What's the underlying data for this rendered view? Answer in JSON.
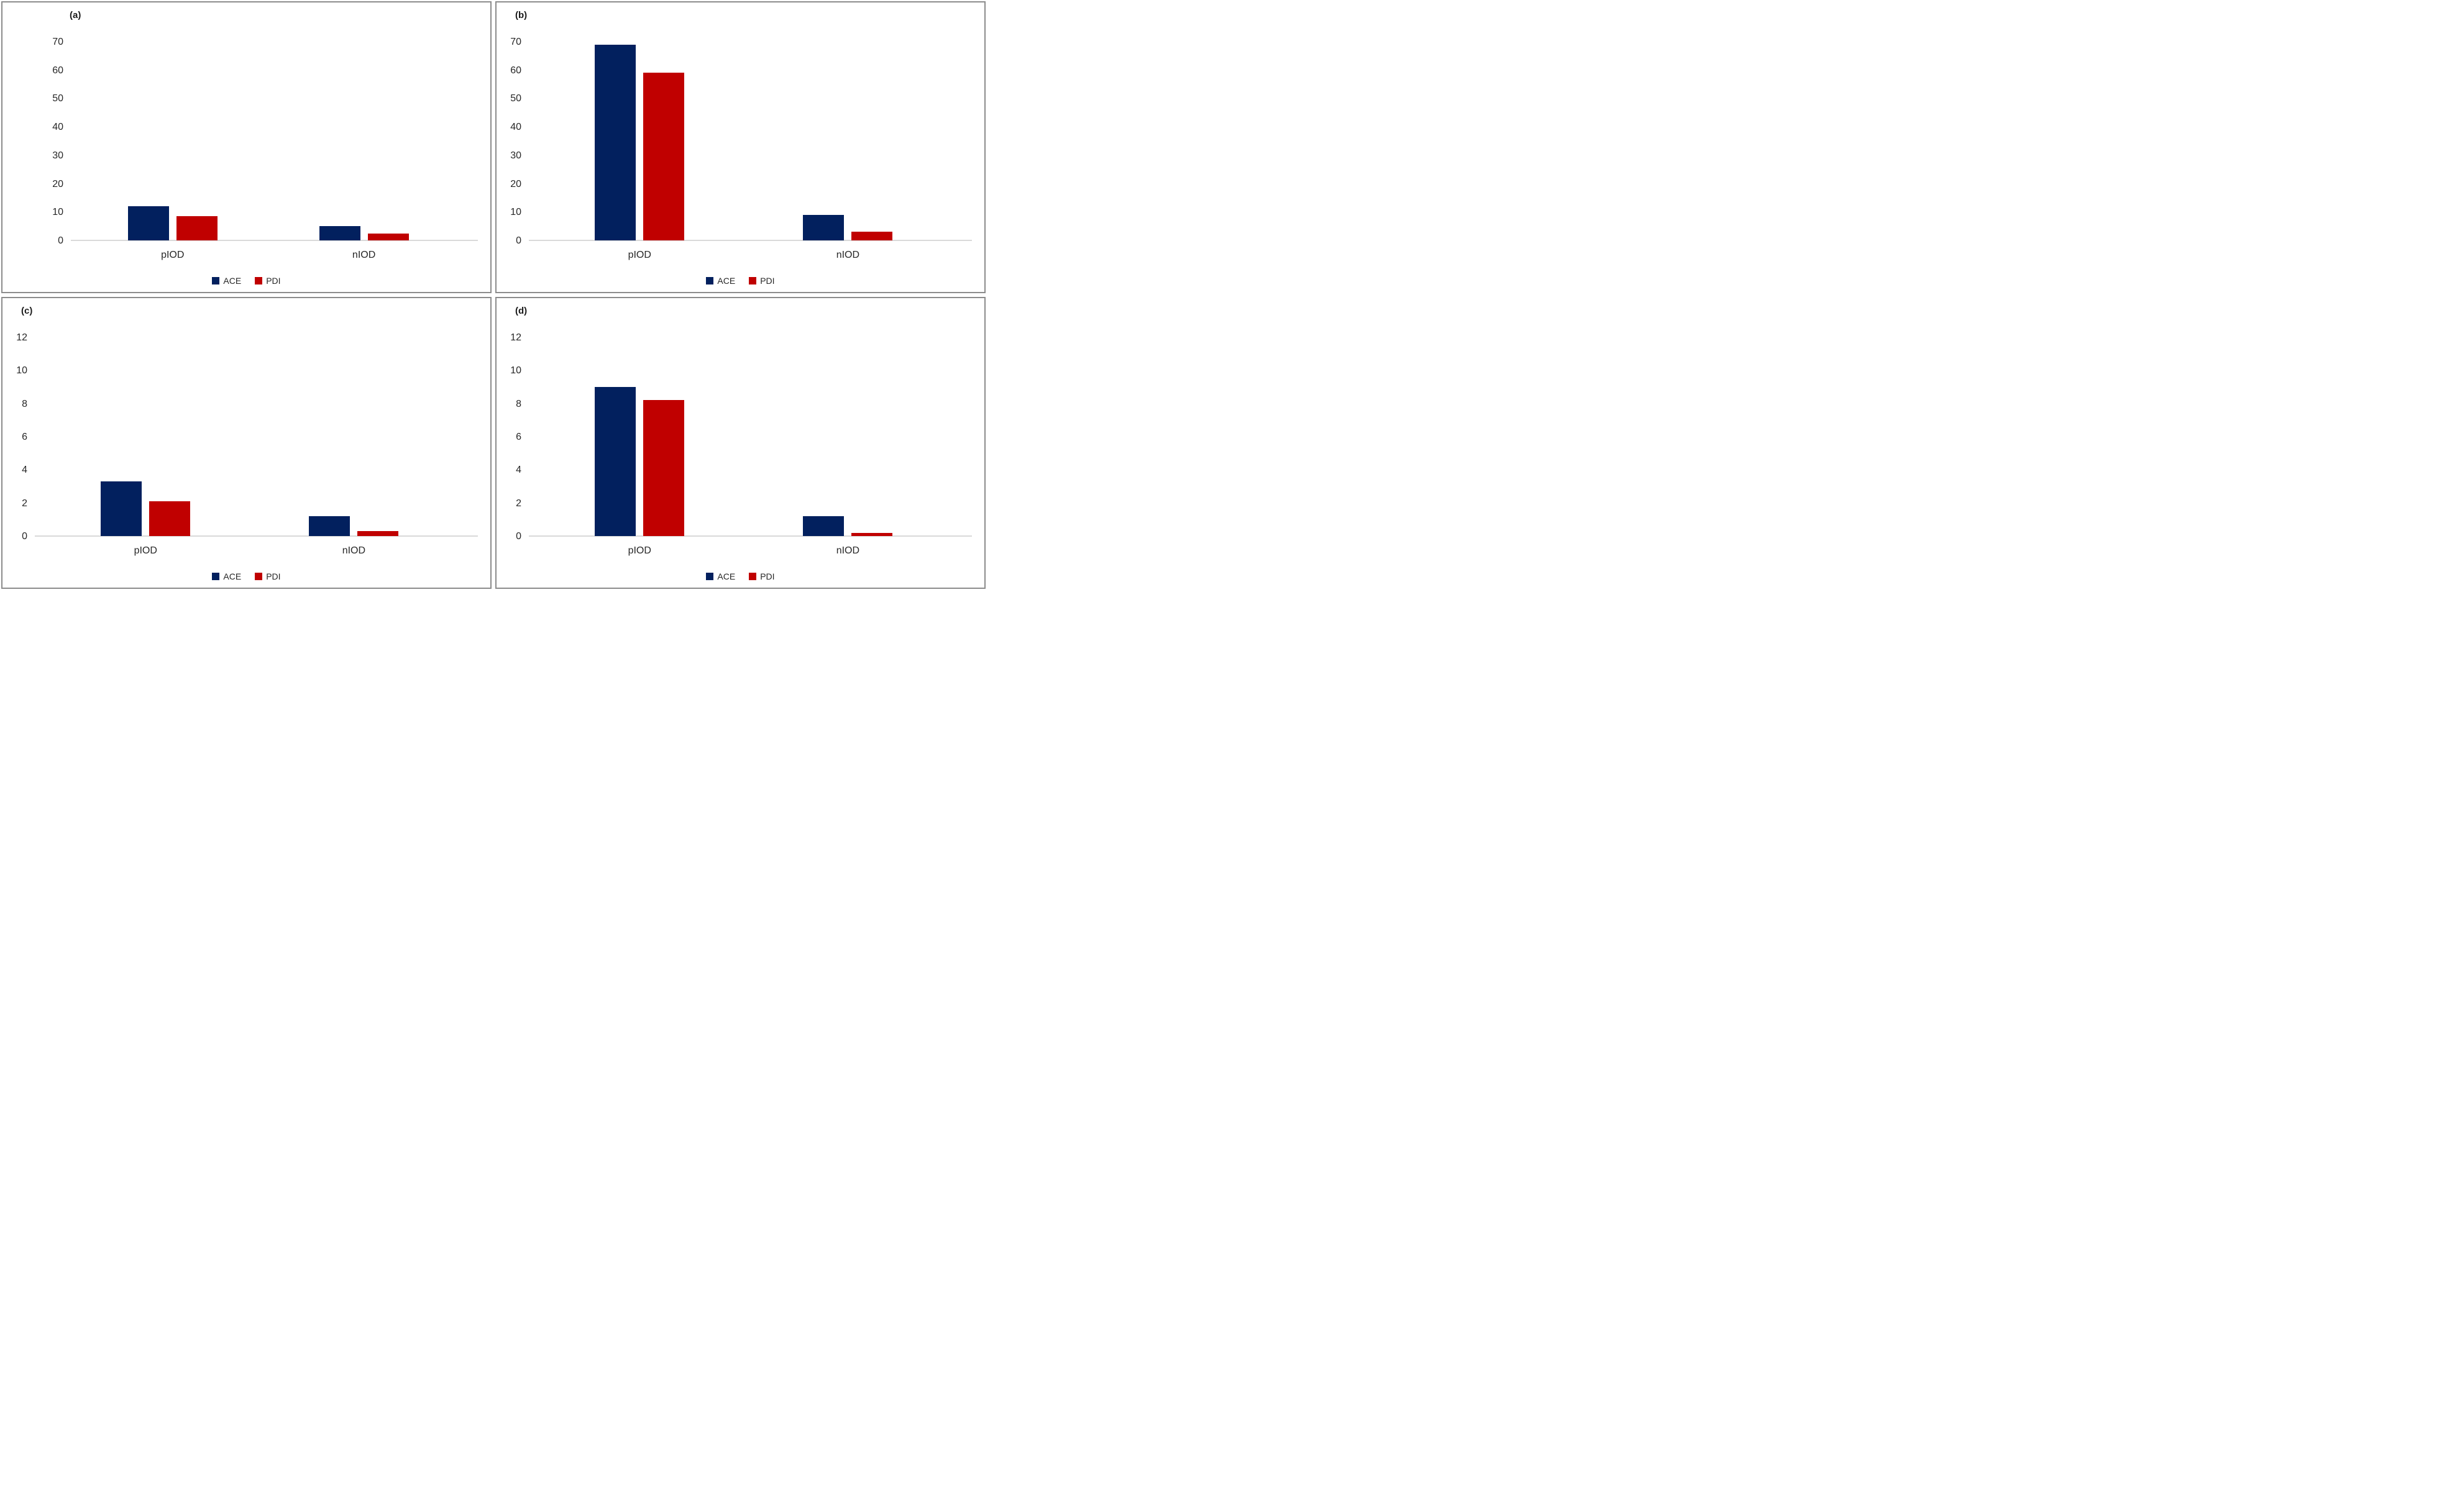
{
  "colors": {
    "ACE": "#02205e",
    "PDI": "#c00000",
    "axis_line": "#d9d9d9",
    "text": "#262626",
    "panel_border": "#8c8c8c"
  },
  "chart_data": [
    {
      "panel": "(a)",
      "type": "bar",
      "categories": [
        "pIOD",
        "nIOD"
      ],
      "ylim": [
        0,
        70
      ],
      "yticks": [
        0,
        10,
        20,
        30,
        40,
        50,
        60,
        70
      ],
      "grid": false,
      "legend_position": "bottom",
      "series": [
        {
          "name": "ACE",
          "values": [
            12,
            5
          ]
        },
        {
          "name": "PDI",
          "values": [
            8.5,
            2.5
          ]
        }
      ]
    },
    {
      "panel": "(b)",
      "type": "bar",
      "categories": [
        "pIOD",
        "nIOD"
      ],
      "ylim": [
        0,
        70
      ],
      "yticks": [
        0,
        10,
        20,
        30,
        40,
        50,
        60,
        70
      ],
      "grid": false,
      "legend_position": "bottom",
      "series": [
        {
          "name": "ACE",
          "values": [
            69,
            9
          ]
        },
        {
          "name": "PDI",
          "values": [
            59,
            3
          ]
        }
      ]
    },
    {
      "panel": "(c)",
      "type": "bar",
      "categories": [
        "pIOD",
        "nIOD"
      ],
      "ylim": [
        0,
        12
      ],
      "yticks": [
        0,
        2,
        4,
        6,
        8,
        10,
        12
      ],
      "grid": false,
      "legend_position": "bottom",
      "series": [
        {
          "name": "ACE",
          "values": [
            3.3,
            1.2
          ]
        },
        {
          "name": "PDI",
          "values": [
            2.1,
            0.3
          ]
        }
      ]
    },
    {
      "panel": "(d)",
      "type": "bar",
      "categories": [
        "pIOD",
        "nIOD"
      ],
      "ylim": [
        0,
        12
      ],
      "yticks": [
        0,
        2,
        4,
        6,
        8,
        10,
        12
      ],
      "grid": false,
      "legend_position": "bottom",
      "series": [
        {
          "name": "ACE",
          "values": [
            9,
            1.2
          ]
        },
        {
          "name": "PDI",
          "values": [
            8.2,
            0.2
          ]
        }
      ]
    }
  ]
}
